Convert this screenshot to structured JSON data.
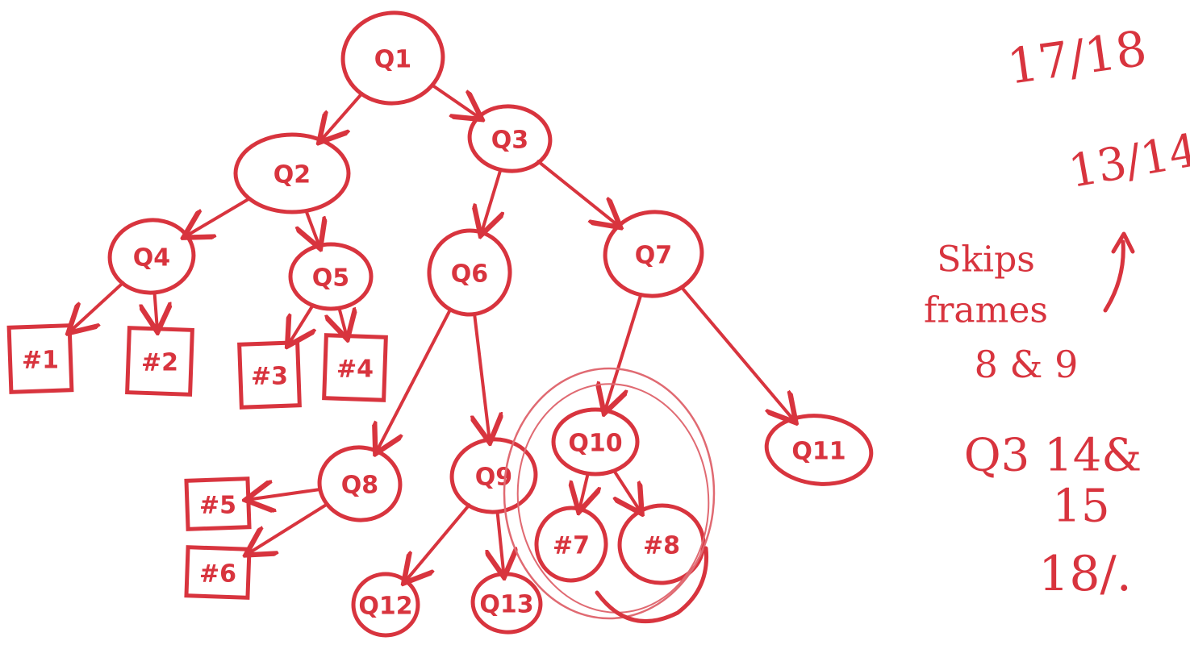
{
  "ink_color": "#d8343e",
  "ink_light": "#e06a72",
  "nodes": [
    {
      "id": "Q1",
      "label": "Q1",
      "kind": "question"
    },
    {
      "id": "Q2",
      "label": "Q2",
      "kind": "question"
    },
    {
      "id": "Q3",
      "label": "Q3",
      "kind": "question"
    },
    {
      "id": "Q4",
      "label": "Q4",
      "kind": "question"
    },
    {
      "id": "Q5",
      "label": "Q5",
      "kind": "question"
    },
    {
      "id": "Q6",
      "label": "Q6",
      "kind": "question"
    },
    {
      "id": "Q7",
      "label": "Q7",
      "kind": "question"
    },
    {
      "id": "A1",
      "label": "#1",
      "kind": "leaf"
    },
    {
      "id": "A2",
      "label": "#2",
      "kind": "leaf"
    },
    {
      "id": "A3",
      "label": "#3",
      "kind": "leaf"
    },
    {
      "id": "A4",
      "label": "#4",
      "kind": "leaf"
    },
    {
      "id": "Q8",
      "label": "Q8",
      "kind": "question"
    },
    {
      "id": "Q9",
      "label": "Q9",
      "kind": "question"
    },
    {
      "id": "Q10",
      "label": "Q10",
      "kind": "question"
    },
    {
      "id": "Q11",
      "label": "Q11",
      "kind": "question"
    },
    {
      "id": "A5",
      "label": "#5",
      "kind": "leaf"
    },
    {
      "id": "A6",
      "label": "#6",
      "kind": "leaf"
    },
    {
      "id": "A7",
      "label": "#7",
      "kind": "leaf"
    },
    {
      "id": "A8",
      "label": "#8",
      "kind": "leaf"
    },
    {
      "id": "Q12",
      "label": "Q12",
      "kind": "question"
    },
    {
      "id": "Q13",
      "label": "Q13",
      "kind": "question"
    }
  ],
  "edges": [
    {
      "from": "Q1",
      "to": "Q2"
    },
    {
      "from": "Q1",
      "to": "Q3"
    },
    {
      "from": "Q2",
      "to": "Q4"
    },
    {
      "from": "Q2",
      "to": "Q5"
    },
    {
      "from": "Q3",
      "to": "Q6"
    },
    {
      "from": "Q3",
      "to": "Q7"
    },
    {
      "from": "Q4",
      "to": "A1"
    },
    {
      "from": "Q4",
      "to": "A2"
    },
    {
      "from": "Q5",
      "to": "A3"
    },
    {
      "from": "Q5",
      "to": "A4"
    },
    {
      "from": "Q6",
      "to": "Q8"
    },
    {
      "from": "Q6",
      "to": "Q9"
    },
    {
      "from": "Q7",
      "to": "Q10"
    },
    {
      "from": "Q7",
      "to": "Q11"
    },
    {
      "from": "Q8",
      "to": "A5"
    },
    {
      "from": "Q8",
      "to": "A6"
    },
    {
      "from": "Q9",
      "to": "Q12"
    },
    {
      "from": "Q9",
      "to": "Q13"
    },
    {
      "from": "Q10",
      "to": "A7"
    },
    {
      "from": "Q10",
      "to": "A8"
    }
  ],
  "notes": {
    "fraction_top": "17/18",
    "fraction_mid": "13/14",
    "skips_line1": "Skips",
    "skips_line2": "frames",
    "skips_line3": "8 & 9",
    "q3_line": "Q3 14&",
    "line_15": "15",
    "line_18": "18/."
  }
}
